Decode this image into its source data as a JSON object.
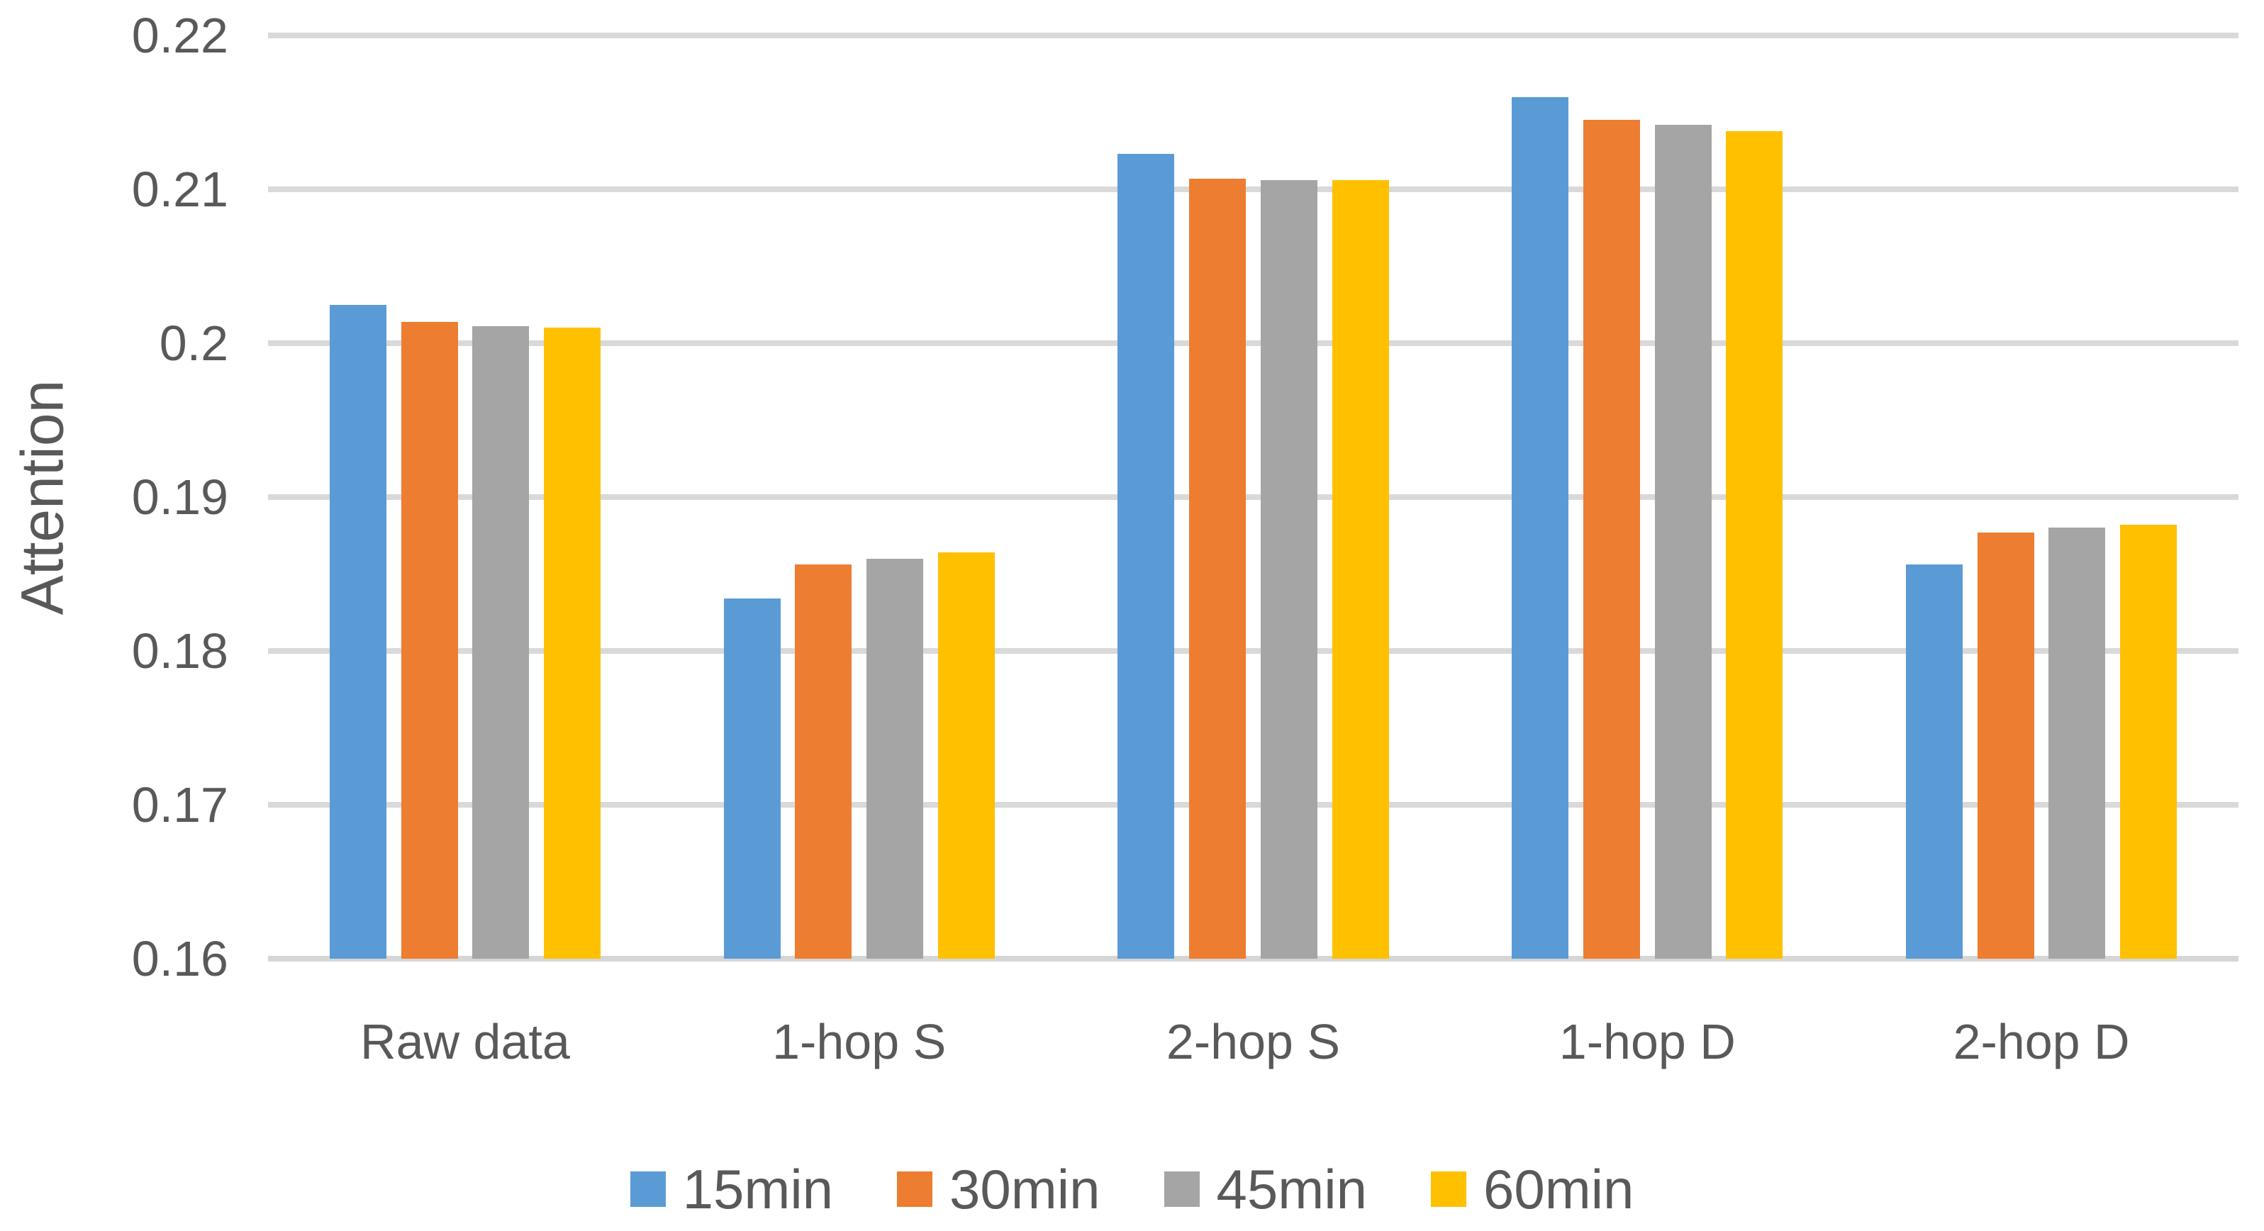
{
  "chart_data": {
    "type": "bar",
    "title": "",
    "ylabel": "Attention",
    "xlabel": "",
    "categories": [
      "Raw data",
      "1-hop S",
      "2-hop S",
      "1-hop D",
      "2-hop D"
    ],
    "series": [
      {
        "name": "15min",
        "color": "#5B9BD5",
        "values": [
          0.2025,
          0.1834,
          0.2123,
          0.216,
          0.1856
        ]
      },
      {
        "name": "30min",
        "color": "#ED7D31",
        "values": [
          0.2014,
          0.1856,
          0.2107,
          0.2145,
          0.1877
        ]
      },
      {
        "name": "45min",
        "color": "#A5A5A5",
        "values": [
          0.2011,
          0.186,
          0.2106,
          0.2142,
          0.188
        ]
      },
      {
        "name": "60min",
        "color": "#FFC000",
        "values": [
          0.201,
          0.1864,
          0.2106,
          0.2138,
          0.1882
        ]
      }
    ],
    "ylim": [
      0.16,
      0.22
    ],
    "ytick_step": 0.01,
    "ytick_labels": [
      "0.22",
      "0.21",
      "0.2",
      "0.19",
      "0.18",
      "0.17",
      "0.16"
    ],
    "grid": true,
    "legend_position": "bottom",
    "colors": {
      "text": "#595959",
      "gridline": "#D9D9D9",
      "axis_line": "#D6D6D6",
      "background": "#FFFFFF"
    }
  }
}
